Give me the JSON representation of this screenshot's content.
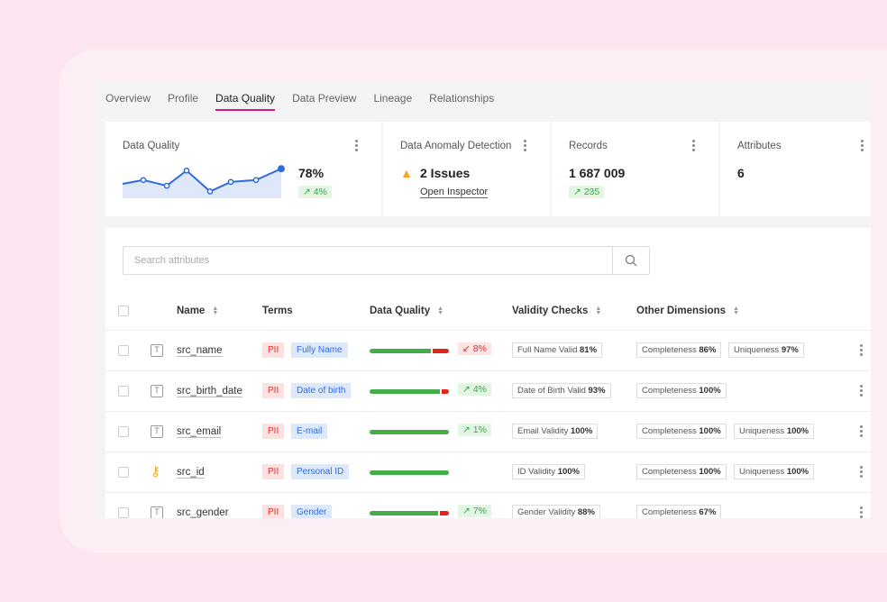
{
  "tabs": [
    "Overview",
    "Profile",
    "Data Quality",
    "Data Preview",
    "Lineage",
    "Relationships"
  ],
  "active_tab": "Data Quality",
  "cards": {
    "quality": {
      "title": "Data Quality",
      "value": "78%",
      "delta": "4%",
      "trend": [
        72,
        74,
        71,
        79,
        68,
        73,
        74,
        80
      ]
    },
    "anomaly": {
      "title": "Data Anomaly Detection",
      "issues": "2 Issues",
      "link": "Open Inspector"
    },
    "records": {
      "title": "Records",
      "value": "1 687 009",
      "delta": "235"
    },
    "attributes": {
      "title": "Attributes",
      "value": "6"
    }
  },
  "search": {
    "placeholder": "Search attributes"
  },
  "columns": [
    "Name",
    "Terms",
    "Data Quality",
    "Validity Checks",
    "Other Dimensions"
  ],
  "rows": [
    {
      "type": "text",
      "name": "src_name",
      "pii": "PII",
      "term": "Fully Name",
      "quality_pass": 0.77,
      "delta": "8%",
      "dir": "down",
      "validity": {
        "label": "Full Name Valid",
        "value": "81%"
      },
      "dims": [
        {
          "label": "Completeness",
          "value": "86%"
        },
        {
          "label": "Uniqueness",
          "value": "97%"
        }
      ]
    },
    {
      "type": "text",
      "name": "src_birth_date",
      "pii": "PII",
      "term": "Date of birth",
      "quality_pass": 0.89,
      "delta": "4%",
      "dir": "up",
      "validity": {
        "label": "Date of Birth Valid",
        "value": "93%"
      },
      "dims": [
        {
          "label": "Completeness",
          "value": "100%"
        }
      ]
    },
    {
      "type": "text",
      "name": "src_email",
      "pii": "PII",
      "term": "E-mail",
      "quality_pass": 1,
      "delta": "1%",
      "dir": "up",
      "validity": {
        "label": "Email Validity",
        "value": "100%"
      },
      "dims": [
        {
          "label": "Completeness",
          "value": "100%"
        },
        {
          "label": "Uniqueness",
          "value": "100%"
        }
      ]
    },
    {
      "type": "key",
      "name": "src_id",
      "pii": "PII",
      "term": "Personal ID",
      "quality_pass": 1,
      "delta": "",
      "dir": "",
      "validity": {
        "label": "ID Validity",
        "value": "100%"
      },
      "dims": [
        {
          "label": "Completeness",
          "value": "100%"
        },
        {
          "label": "Uniqueness",
          "value": "100%"
        }
      ]
    },
    {
      "type": "text",
      "name": "src_gender",
      "pii": "PII",
      "term": "Gender",
      "quality_pass": 0.86,
      "delta": "7%",
      "dir": "up",
      "validity": {
        "label": "Gender Validity",
        "value": "88%"
      },
      "dims": [
        {
          "label": "Completeness",
          "value": "67%"
        }
      ]
    }
  ]
}
